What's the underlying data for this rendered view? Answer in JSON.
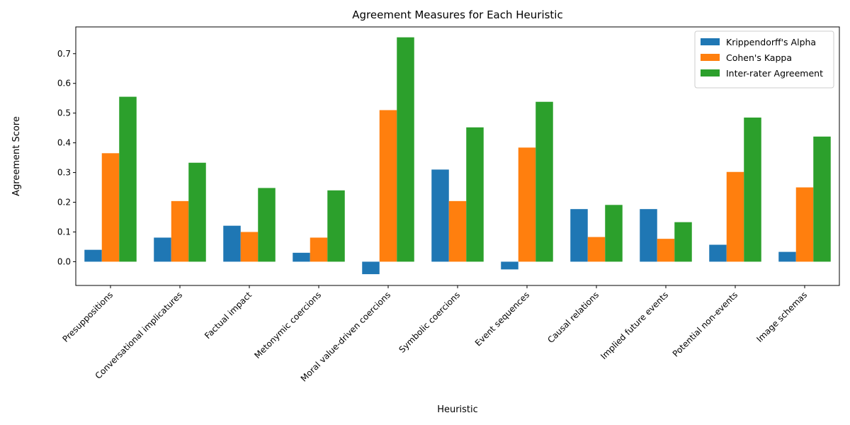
{
  "chart_data": {
    "type": "bar",
    "title": "Agreement Measures for Each Heuristic",
    "xlabel": "Heuristic",
    "ylabel": "Agreement Score",
    "ylim": [
      -0.08,
      0.79
    ],
    "yticks": [
      "0.0",
      "0.1",
      "0.2",
      "0.3",
      "0.4",
      "0.5",
      "0.6",
      "0.7"
    ],
    "grid": false,
    "legend_position": "top-right",
    "categories": [
      "Presuppositions",
      "Conversational implicatures",
      "Factual impact",
      "Metonymic coercions",
      "Moral value-driven coercions",
      "Symbolic coercions",
      "Event sequences",
      "Causal relations",
      "Implied future events",
      "Potential non-events",
      "Image schemas"
    ],
    "series": [
      {
        "name": "Krippendorff's Alpha",
        "color": "#1f77b4",
        "values": [
          0.04,
          0.081,
          0.121,
          0.03,
          -0.042,
          0.31,
          -0.026,
          0.177,
          0.177,
          0.057,
          0.033
        ]
      },
      {
        "name": "Cohen's Kappa",
        "color": "#ff7f0e",
        "values": [
          0.365,
          0.204,
          0.1,
          0.081,
          0.51,
          0.204,
          0.384,
          0.083,
          0.077,
          0.302,
          0.25
        ]
      },
      {
        "name": "Inter-rater Agreement",
        "color": "#2ca02c",
        "values": [
          0.555,
          0.333,
          0.248,
          0.24,
          0.755,
          0.452,
          0.538,
          0.191,
          0.133,
          0.485,
          0.421
        ]
      }
    ]
  }
}
